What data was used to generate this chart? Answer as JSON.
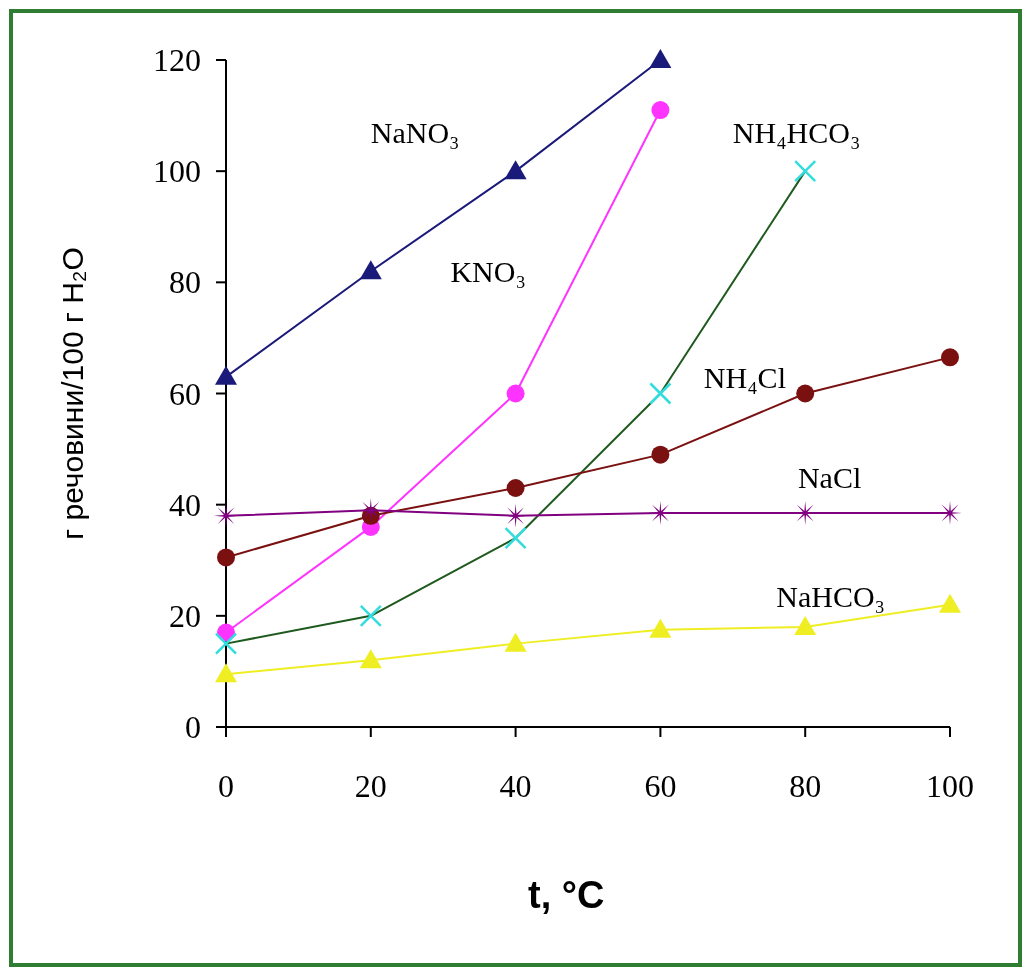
{
  "chart_data": {
    "type": "line",
    "xlabel": "t, °C",
    "ylabel": "г речовини/100 г H₂O",
    "x": [
      0,
      20,
      40,
      60,
      80,
      100
    ],
    "xlim": [
      0,
      100
    ],
    "xticks": [
      0,
      20,
      40,
      60,
      80,
      100
    ],
    "ylim": [
      0,
      120
    ],
    "yticks": [
      0,
      20,
      40,
      60,
      80,
      100,
      120
    ],
    "grid": false,
    "legend": false,
    "series": [
      {
        "name": "NaNO₃",
        "color": "#1a1a7a",
        "marker": "triangle",
        "x": [
          0,
          20,
          40,
          60
        ],
        "values": [
          63,
          82,
          100,
          120
        ]
      },
      {
        "name": "KNO₃",
        "color": "#ff33ff",
        "marker": "circle",
        "x": [
          0,
          20,
          40,
          60
        ],
        "values": [
          17,
          36,
          60,
          111
        ]
      },
      {
        "name": "NH₄HCO₃",
        "color": "#1e5a1e",
        "colors": [
          "#33dddd",
          "#33dddd",
          "#33dddd",
          "#33dddd",
          "#33dddd"
        ],
        "marker": "cross",
        "x": [
          0,
          20,
          40,
          60,
          80
        ],
        "values": [
          15,
          20,
          34,
          60,
          100
        ]
      },
      {
        "name": "NH₄Cl",
        "color": "#7a1010",
        "marker": "circle",
        "values": [
          30.5,
          38,
          43,
          49,
          60,
          66.5
        ]
      },
      {
        "name": "NaCl",
        "color": "#800080",
        "marker": "star",
        "values": [
          38,
          39,
          38,
          38.5,
          38.5,
          38.5
        ]
      },
      {
        "name": "NaHCO₃",
        "color": "#eeee22",
        "marker": "triangle",
        "values": [
          9.5,
          12,
          15,
          17.5,
          18,
          22
        ]
      }
    ]
  }
}
